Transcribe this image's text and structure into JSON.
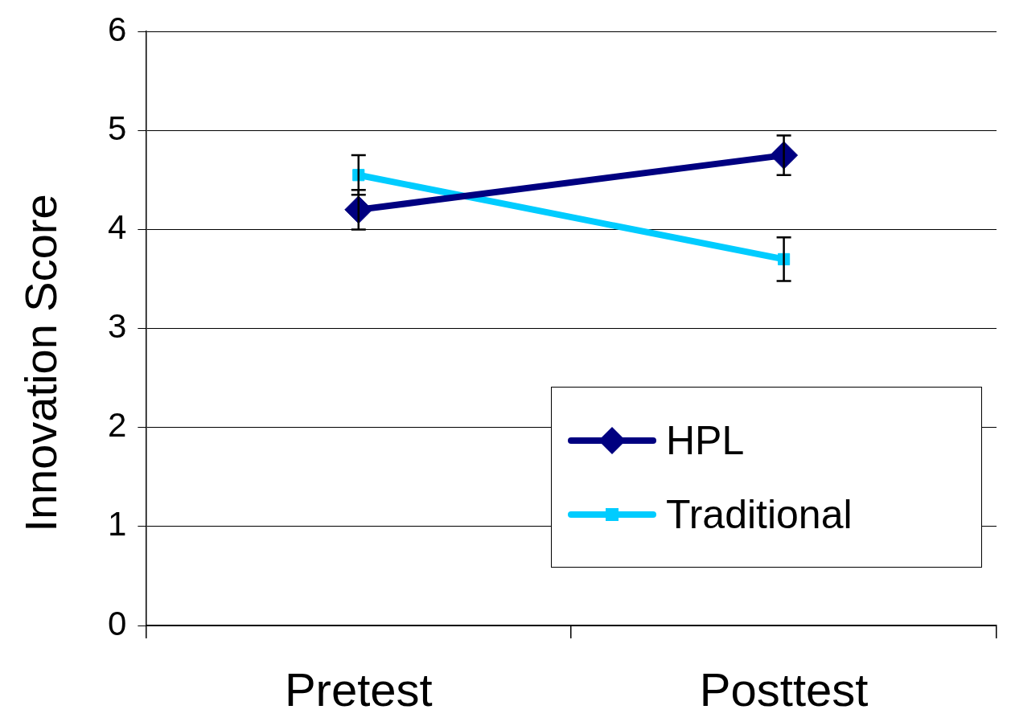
{
  "chart_data": {
    "type": "line",
    "ylabel": "Innovation Score",
    "categories": [
      "Pretest",
      "Posttest"
    ],
    "series": [
      {
        "name": "HPL",
        "color": "#000080",
        "values": [
          4.2,
          4.75
        ],
        "errors": [
          0.2,
          0.2
        ],
        "marker": "diamond"
      },
      {
        "name": "Traditional",
        "color": "#00ccff",
        "values": [
          4.55,
          3.7
        ],
        "errors": [
          0.2,
          0.22
        ],
        "marker": "square"
      }
    ],
    "ylim": [
      0,
      6
    ],
    "yticks": [
      0,
      1,
      2,
      3,
      4,
      5,
      6
    ],
    "grid": "y",
    "legend": "bottom right",
    "line_style": "solid"
  }
}
